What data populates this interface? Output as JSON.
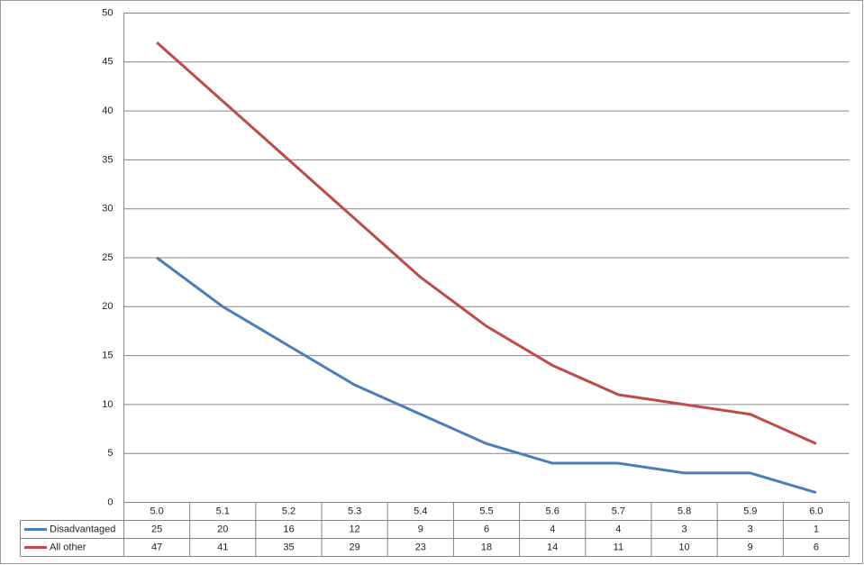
{
  "chart_data": {
    "type": "line",
    "categories": [
      "5.0",
      "5.1",
      "5.2",
      "5.3",
      "5.4",
      "5.5",
      "5.6",
      "5.7",
      "5.8",
      "5.9",
      "6.0"
    ],
    "series": [
      {
        "name": "Disadvantaged",
        "color": "#4a7ebb",
        "values": [
          25,
          20,
          16,
          12,
          9,
          6,
          4,
          4,
          3,
          3,
          1
        ]
      },
      {
        "name": "All other",
        "color": "#be4b48",
        "values": [
          47,
          41,
          35,
          29,
          23,
          18,
          14,
          11,
          10,
          9,
          6
        ]
      }
    ],
    "ylim": [
      0,
      50
    ],
    "yticks": [
      0,
      5,
      10,
      15,
      20,
      25,
      30,
      35,
      40,
      45,
      50
    ],
    "grid": true
  }
}
